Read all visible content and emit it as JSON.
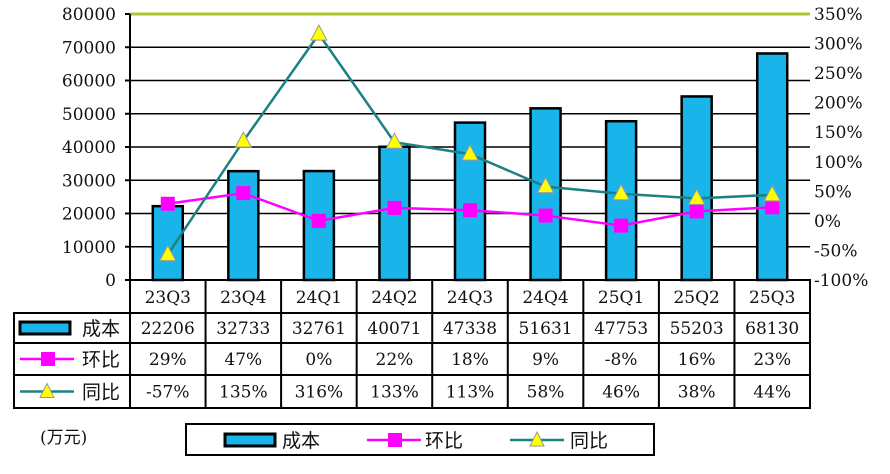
{
  "chart_data": {
    "type": "bar",
    "categories": [
      "23Q3",
      "23Q4",
      "24Q1",
      "24Q2",
      "24Q3",
      "24Q4",
      "25Q1",
      "25Q2",
      "25Q3"
    ],
    "series": [
      {
        "name": "成本",
        "type": "bar",
        "axis": "left",
        "values": [
          22206,
          32733,
          32761,
          40071,
          47338,
          51631,
          47753,
          55203,
          68130
        ],
        "labels": [
          "22206",
          "32733",
          "32761",
          "40071",
          "47338",
          "51631",
          "47753",
          "55203",
          "68130"
        ],
        "color": "#19b5ea"
      },
      {
        "name": "环比",
        "type": "line",
        "axis": "right",
        "values": [
          29,
          47,
          0,
          22,
          18,
          9,
          -8,
          16,
          23
        ],
        "labels": [
          "29%",
          "47%",
          "0%",
          "22%",
          "18%",
          "9%",
          "-8%",
          "16%",
          "23%"
        ],
        "color": "#ff00ff"
      },
      {
        "name": "同比",
        "type": "line",
        "axis": "right",
        "values": [
          -57,
          135,
          316,
          133,
          113,
          58,
          46,
          38,
          44
        ],
        "labels": [
          "-57%",
          "135%",
          "316%",
          "133%",
          "113%",
          "58%",
          "46%",
          "38%",
          "44%"
        ],
        "color": "#1e8080",
        "marker_color": "#ffff00"
      }
    ],
    "left_ylim": [
      0,
      80000
    ],
    "left_ticks": [
      "0",
      "10000",
      "20000",
      "30000",
      "40000",
      "50000",
      "60000",
      "70000",
      "80000"
    ],
    "right_ylim": [
      -100,
      350
    ],
    "right_ticks": [
      "-100%",
      "-50%",
      "0%",
      "50%",
      "100%",
      "150%",
      "200%",
      "250%",
      "300%",
      "350%"
    ],
    "unit": "(万元)",
    "grid": true,
    "legend_placement": "bottom"
  }
}
